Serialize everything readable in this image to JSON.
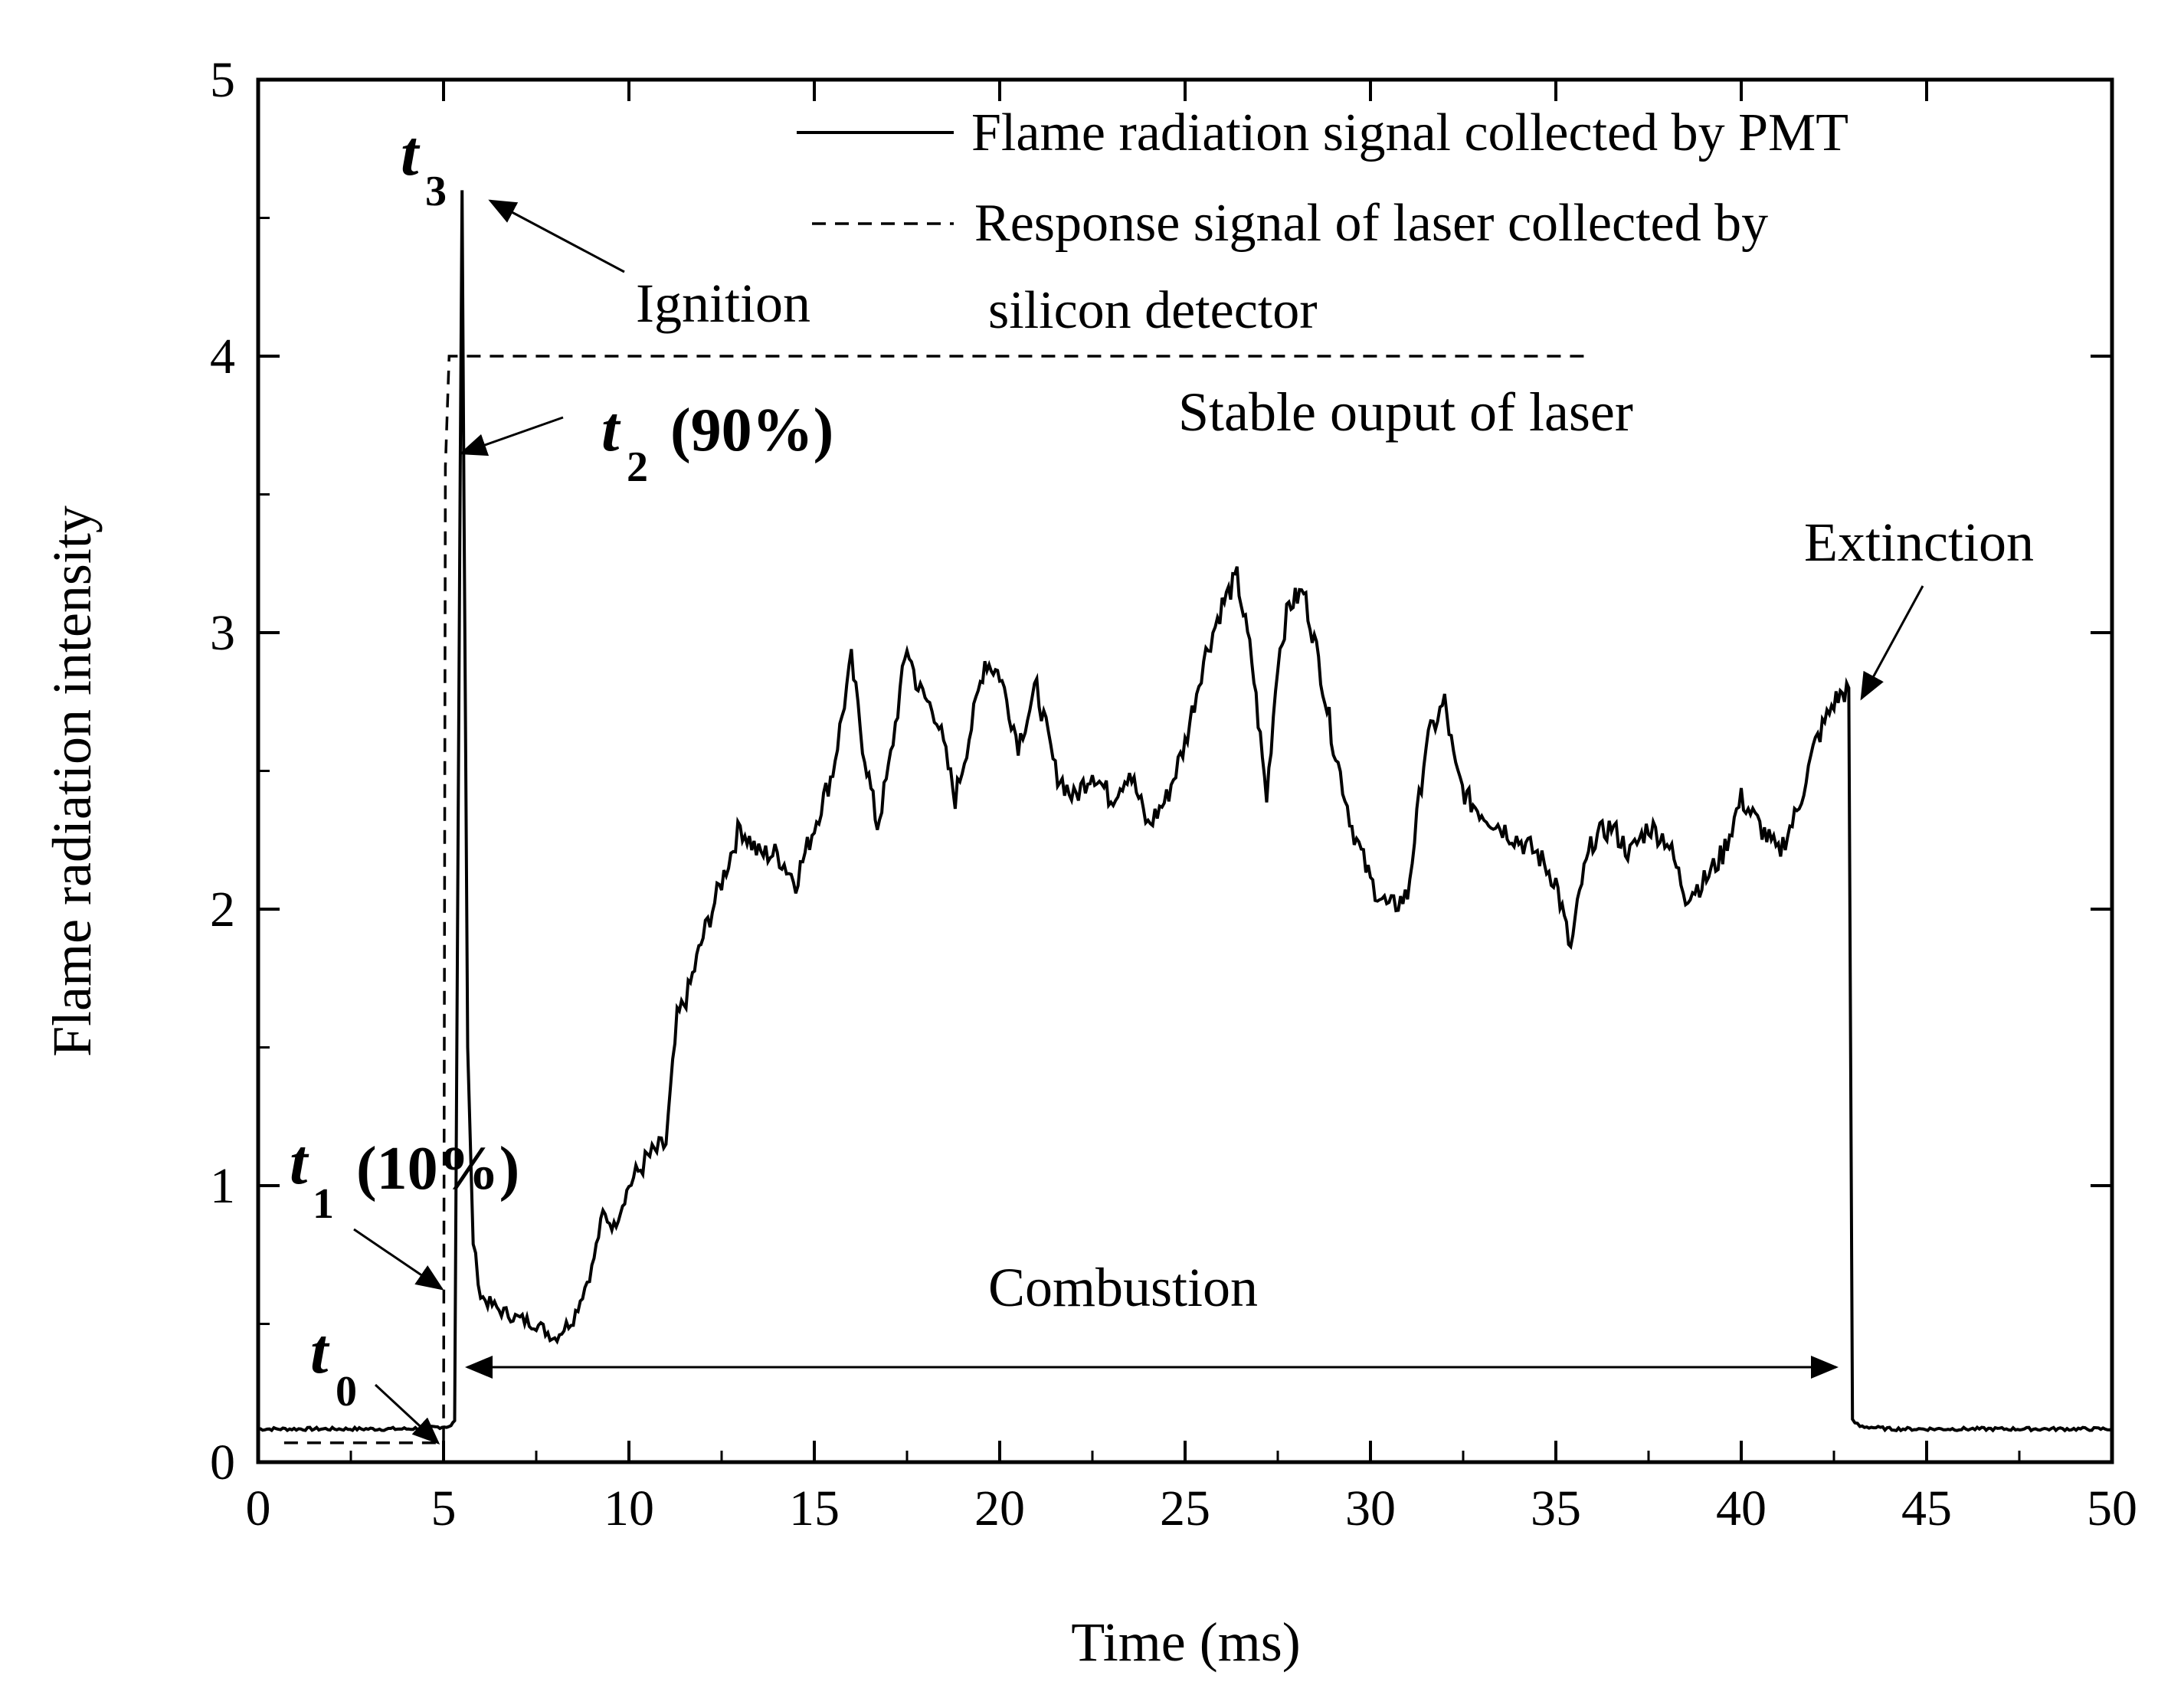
{
  "chart_data": {
    "type": "line",
    "title": "",
    "xlabel": "Time (ms)",
    "ylabel": "Flame radiation intensity",
    "xlim": [
      0,
      50
    ],
    "ylim": [
      0,
      5
    ],
    "xticks": [
      0,
      5,
      10,
      15,
      20,
      25,
      30,
      35,
      40,
      45,
      50
    ],
    "yticks": [
      0,
      1,
      2,
      3,
      4,
      5
    ],
    "tick_labels_x": [
      "0",
      "5",
      "10",
      "15",
      "20",
      "25",
      "30",
      "35",
      "40",
      "45",
      "50"
    ],
    "tick_labels_y": [
      "0",
      "1",
      "2",
      "3",
      "4",
      "5"
    ],
    "legend_position": "top-right",
    "series": [
      {
        "name": "Flame radiation signal collected by PMT",
        "style": "solid",
        "x": [
          0,
          2,
          4,
          5.2,
          5.3,
          5.45,
          5.5,
          5.55,
          5.65,
          5.8,
          6.0,
          6.5,
          7.0,
          7.5,
          8.0,
          8.5,
          9.0,
          9.3,
          9.6,
          10.0,
          10.5,
          11.0,
          11.3,
          11.6,
          12.0,
          12.5,
          13.0,
          13.5,
          14.0,
          14.5,
          15.0,
          15.5,
          16.0,
          16.3,
          16.7,
          17.0,
          17.5,
          17.8,
          18.3,
          18.8,
          19.3,
          19.6,
          20.0,
          20.5,
          21.0,
          21.5,
          22.0,
          22.5,
          23.0,
          23.5,
          24.0,
          24.5,
          25.0,
          25.5,
          26.0,
          26.4,
          26.8,
          27.2,
          27.5,
          27.8,
          28.2,
          28.6,
          29.0,
          29.5,
          30.0,
          30.5,
          31.0,
          31.5,
          32.0,
          32.3,
          32.6,
          33.0,
          33.5,
          34.0,
          34.5,
          35.0,
          35.4,
          35.7,
          36.0,
          36.5,
          37.0,
          37.5,
          38.0,
          38.5,
          39.0,
          39.5,
          40.0,
          40.5,
          41.0,
          41.5,
          42.0,
          42.5,
          42.9,
          43.0,
          43.2,
          44,
          46,
          48,
          50
        ],
        "y": [
          0.12,
          0.12,
          0.12,
          0.13,
          0.15,
          3.6,
          4.6,
          3.5,
          1.5,
          0.8,
          0.6,
          0.55,
          0.52,
          0.5,
          0.45,
          0.52,
          0.7,
          0.9,
          0.85,
          1.0,
          1.1,
          1.15,
          1.6,
          1.7,
          1.9,
          2.1,
          2.3,
          2.2,
          2.2,
          2.1,
          2.3,
          2.5,
          2.9,
          2.6,
          2.3,
          2.5,
          2.95,
          2.8,
          2.7,
          2.4,
          2.7,
          2.9,
          2.85,
          2.6,
          2.8,
          2.5,
          2.4,
          2.5,
          2.4,
          2.5,
          2.3,
          2.4,
          2.6,
          2.9,
          3.1,
          3.2,
          2.9,
          2.4,
          2.9,
          3.1,
          3.15,
          2.9,
          2.6,
          2.3,
          2.1,
          2.0,
          2.05,
          2.6,
          2.75,
          2.5,
          2.4,
          2.35,
          2.3,
          2.25,
          2.2,
          2.1,
          1.85,
          2.1,
          2.25,
          2.3,
          2.2,
          2.3,
          2.25,
          2.05,
          2.1,
          2.2,
          2.4,
          2.3,
          2.2,
          2.35,
          2.6,
          2.75,
          2.8,
          0.15,
          0.13,
          0.12,
          0.12,
          0.12,
          0.12
        ]
      },
      {
        "name": "Response signal of laser collected by silicon detector",
        "style": "dashed",
        "x": [
          0.7,
          5.0,
          5.05,
          5.15,
          36.0
        ],
        "y": [
          0.07,
          0.07,
          3.6,
          4.0,
          4.0
        ]
      }
    ],
    "legend": [
      "Flame radiation signal collected by PMT",
      "Response signal of laser collected by",
      "silicon detector"
    ],
    "annotations": {
      "t3_letter": "t",
      "t3_sub": "3",
      "ignition": "Ignition",
      "t2_letter": "t",
      "t2_sub": "2",
      "t2_pct": "(90%)",
      "stable": "Stable ouput of laser",
      "extinction": "Extinction",
      "t1_letter": "t",
      "t1_sub": "1",
      "t1_pct": "(10%)",
      "t0_letter": "t",
      "t0_sub": "0",
      "combustion": "Combustion"
    }
  }
}
